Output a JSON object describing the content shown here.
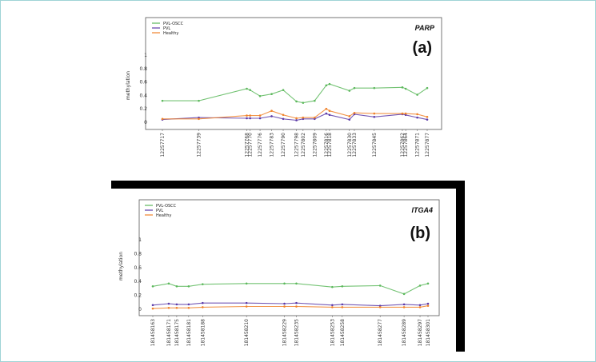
{
  "chart_data": [
    {
      "type": "line",
      "gene": "PARP",
      "panel_label": "(a)",
      "ylabel": "methylation",
      "yticks": [
        "0",
        "0.2",
        "0.4",
        "0.6",
        "0.8",
        "1"
      ],
      "ylim": [
        0,
        1.0
      ],
      "legend_position": "top-left",
      "x": [
        "12257717",
        "12257739",
        "12257768",
        "12257770",
        "12257776",
        "12257783",
        "12257790",
        "12257798",
        "12257802",
        "12257809",
        "12257816",
        "12257818",
        "12257830",
        "12257833",
        "12257845",
        "12257862",
        "12257864",
        "12257871",
        "12257877"
      ],
      "x_pos": [
        12257717,
        12257739,
        12257768,
        12257770,
        12257776,
        12257783,
        12257790,
        12257798,
        12257802,
        12257809,
        12257816,
        12257818,
        12257830,
        12257833,
        12257845,
        12257862,
        12257864,
        12257871,
        12257877
      ],
      "series": [
        {
          "name": "PVL-OSCC",
          "color": "#5cb85c",
          "values": [
            0.32,
            0.32,
            0.5,
            0.48,
            0.39,
            0.42,
            0.48,
            0.31,
            0.29,
            0.32,
            0.55,
            0.57,
            0.47,
            0.51,
            0.51,
            0.52,
            0.5,
            0.41,
            0.51
          ]
        },
        {
          "name": "PVL",
          "color": "#5b3aa8",
          "values": [
            0.04,
            0.07,
            0.06,
            0.06,
            0.06,
            0.09,
            0.05,
            0.03,
            0.05,
            0.05,
            0.13,
            0.11,
            0.04,
            0.12,
            0.08,
            0.12,
            0.11,
            0.07,
            0.04
          ]
        },
        {
          "name": "Healthy",
          "color": "#f0822a",
          "values": [
            0.05,
            0.05,
            0.1,
            0.1,
            0.1,
            0.17,
            0.11,
            0.06,
            0.07,
            0.07,
            0.2,
            0.17,
            0.09,
            0.14,
            0.13,
            0.13,
            0.13,
            0.12,
            0.08
          ]
        }
      ]
    },
    {
      "type": "line",
      "gene": "ITGA4",
      "panel_label": "(b)",
      "ylabel": "methylation",
      "yticks": [
        "0",
        "0.2",
        "0.4",
        "0.6",
        "0.8",
        "1"
      ],
      "ylim": [
        0,
        1.0
      ],
      "legend_position": "top-left",
      "x": [
        "181458163",
        "181458171",
        "181458175",
        "181458181",
        "181458188",
        "181458210",
        "181458229",
        "181458235",
        "181458253",
        "181458258",
        "181458277",
        "181458289",
        "181458297",
        "181458301"
      ],
      "x_pos": [
        181458163,
        181458171,
        181458175,
        181458181,
        181458188,
        181458210,
        181458229,
        181458235,
        181458253,
        181458258,
        181458277,
        181458289,
        181458297,
        181458301
      ],
      "series": [
        {
          "name": "PVL-OSCC",
          "color": "#5cb85c",
          "values": [
            0.33,
            0.37,
            0.33,
            0.33,
            0.36,
            0.37,
            0.37,
            0.37,
            0.32,
            0.33,
            0.34,
            0.22,
            0.34,
            0.37
          ]
        },
        {
          "name": "PVL",
          "color": "#5b3aa8",
          "values": [
            0.06,
            0.08,
            0.07,
            0.07,
            0.09,
            0.09,
            0.08,
            0.09,
            0.06,
            0.07,
            0.05,
            0.07,
            0.06,
            0.08
          ]
        },
        {
          "name": "Healthy",
          "color": "#f0822a",
          "values": [
            0.01,
            0.02,
            0.02,
            0.02,
            0.03,
            0.04,
            0.04,
            0.04,
            0.03,
            0.03,
            0.03,
            0.03,
            0.03,
            0.05
          ]
        }
      ]
    }
  ]
}
